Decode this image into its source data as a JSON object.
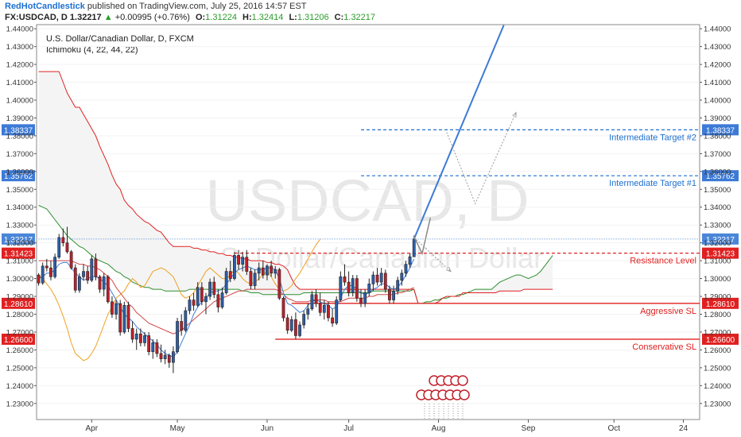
{
  "header": {
    "author": "RedHotCandlestick",
    "published": "published on TradingView.com, July 25, 2016 14:57 EST",
    "symbol": "FX:USDCAD, D",
    "last": "1.32217",
    "change_arrow": "▲",
    "change": "+0.00995 (+0.76%)",
    "o_label": "O:",
    "o": "1.31224",
    "h_label": "H:",
    "h": "1.32414",
    "l_label": "L:",
    "l": "1.31206",
    "c_label": "C:",
    "c": "1.32217"
  },
  "chart_data": {
    "type": "candlestick",
    "title": "U.S. Dollar/Canadian Dollar, D, FXCM",
    "indicator": "Ichimoku (4, 22, 44, 22)",
    "watermark_symbol": "USDCAD, D",
    "watermark_name": "U.S. Dollar/Canadian Dollar",
    "ylim": [
      1.221,
      1.4423
    ],
    "y_ticks": [
      "1.44000",
      "1.43000",
      "1.42000",
      "1.41000",
      "1.40000",
      "1.39000",
      "1.38000",
      "1.37000",
      "1.36000",
      "1.35000",
      "1.34000",
      "1.33000",
      "1.32000",
      "1.31000",
      "1.30000",
      "1.29000",
      "1.28000",
      "1.27000",
      "1.26000",
      "1.25000",
      "1.24000",
      "1.23000"
    ],
    "x_ticks": [
      {
        "label": "Apr",
        "i": 13
      },
      {
        "label": "May",
        "i": 34
      },
      {
        "label": "Jun",
        "i": 56
      },
      {
        "label": "Jul",
        "i": 76
      },
      {
        "label": "Aug",
        "i": 98
      },
      {
        "label": "Sep",
        "i": 120
      },
      {
        "label": "Oct",
        "i": 141
      },
      {
        "label": "24",
        "i": 158
      }
    ],
    "x_range": [
      -0.5,
      162
    ],
    "candles": [
      [
        1.302,
        1.303,
        1.296,
        1.2975
      ],
      [
        1.2975,
        1.309,
        1.2965,
        1.307
      ],
      [
        1.307,
        1.311,
        1.304,
        1.306
      ],
      [
        1.306,
        1.31,
        1.299,
        1.301
      ],
      [
        1.301,
        1.314,
        1.3,
        1.312
      ],
      [
        1.312,
        1.325,
        1.311,
        1.323
      ],
      [
        1.323,
        1.328,
        1.318,
        1.32
      ],
      [
        1.32,
        1.329,
        1.314,
        1.315
      ],
      [
        1.315,
        1.316,
        1.305,
        1.306
      ],
      [
        1.306,
        1.308,
        1.292,
        1.2935
      ],
      [
        1.2935,
        1.303,
        1.292,
        1.301
      ],
      [
        1.301,
        1.308,
        1.299,
        1.304
      ],
      [
        1.304,
        1.307,
        1.297,
        1.299
      ],
      [
        1.299,
        1.313,
        1.298,
        1.311
      ],
      [
        1.311,
        1.314,
        1.299,
        1.301
      ],
      [
        1.301,
        1.302,
        1.292,
        1.294
      ],
      [
        1.294,
        1.303,
        1.29,
        1.301
      ],
      [
        1.301,
        1.302,
        1.286,
        1.287
      ],
      [
        1.287,
        1.29,
        1.278,
        1.28
      ],
      [
        1.28,
        1.288,
        1.277,
        1.286
      ],
      [
        1.286,
        1.288,
        1.268,
        1.27
      ],
      [
        1.27,
        1.287,
        1.269,
        1.285
      ],
      [
        1.285,
        1.287,
        1.27,
        1.272
      ],
      [
        1.272,
        1.276,
        1.264,
        1.266
      ],
      [
        1.266,
        1.272,
        1.26,
        1.269
      ],
      [
        1.269,
        1.272,
        1.262,
        1.264
      ],
      [
        1.264,
        1.27,
        1.262,
        1.268
      ],
      [
        1.268,
        1.27,
        1.257,
        1.259
      ],
      [
        1.259,
        1.266,
        1.255,
        1.264
      ],
      [
        1.264,
        1.266,
        1.256,
        1.258
      ],
      [
        1.258,
        1.263,
        1.253,
        1.255
      ],
      [
        1.255,
        1.26,
        1.252,
        1.257
      ],
      [
        1.257,
        1.258,
        1.25,
        1.253
      ],
      [
        1.253,
        1.262,
        1.247,
        1.259
      ],
      [
        1.259,
        1.278,
        1.258,
        1.276
      ],
      [
        1.276,
        1.28,
        1.268,
        1.271
      ],
      [
        1.271,
        1.284,
        1.27,
        1.282
      ],
      [
        1.282,
        1.29,
        1.28,
        1.288
      ],
      [
        1.288,
        1.292,
        1.282,
        1.285
      ],
      [
        1.285,
        1.298,
        1.284,
        1.295
      ],
      [
        1.295,
        1.298,
        1.285,
        1.287
      ],
      [
        1.287,
        1.292,
        1.28,
        1.29
      ],
      [
        1.29,
        1.3,
        1.288,
        1.298
      ],
      [
        1.298,
        1.301,
        1.289,
        1.291
      ],
      [
        1.291,
        1.294,
        1.281,
        1.284
      ],
      [
        1.284,
        1.295,
        1.283,
        1.292
      ],
      [
        1.292,
        1.306,
        1.291,
        1.304
      ],
      [
        1.304,
        1.31,
        1.298,
        1.3
      ],
      [
        1.3,
        1.315,
        1.299,
        1.313
      ],
      [
        1.313,
        1.316,
        1.305,
        1.308
      ],
      [
        1.308,
        1.315,
        1.304,
        1.312
      ],
      [
        1.312,
        1.316,
        1.302,
        1.304
      ],
      [
        1.304,
        1.306,
        1.294,
        1.296
      ],
      [
        1.296,
        1.305,
        1.294,
        1.303
      ],
      [
        1.303,
        1.309,
        1.299,
        1.306
      ],
      [
        1.306,
        1.31,
        1.3,
        1.302
      ],
      [
        1.302,
        1.308,
        1.299,
        1.307
      ],
      [
        1.307,
        1.31,
        1.301,
        1.303
      ],
      [
        1.303,
        1.307,
        1.3,
        1.305
      ],
      [
        1.305,
        1.306,
        1.288,
        1.289
      ],
      [
        1.289,
        1.29,
        1.276,
        1.278
      ],
      [
        1.278,
        1.28,
        1.269,
        1.271
      ],
      [
        1.271,
        1.279,
        1.27,
        1.277
      ],
      [
        1.277,
        1.281,
        1.266,
        1.268
      ],
      [
        1.268,
        1.276,
        1.267,
        1.274
      ],
      [
        1.274,
        1.282,
        1.272,
        1.28
      ],
      [
        1.28,
        1.286,
        1.277,
        1.283
      ],
      [
        1.283,
        1.293,
        1.282,
        1.291
      ],
      [
        1.291,
        1.294,
        1.284,
        1.286
      ],
      [
        1.286,
        1.292,
        1.279,
        1.281
      ],
      [
        1.281,
        1.288,
        1.277,
        1.285
      ],
      [
        1.285,
        1.287,
        1.276,
        1.278
      ],
      [
        1.278,
        1.283,
        1.273,
        1.275
      ],
      [
        1.275,
        1.29,
        1.274,
        1.288
      ],
      [
        1.288,
        1.304,
        1.287,
        1.301
      ],
      [
        1.301,
        1.308,
        1.296,
        1.298
      ],
      [
        1.298,
        1.304,
        1.29,
        1.292
      ],
      [
        1.292,
        1.302,
        1.29,
        1.3
      ],
      [
        1.3,
        1.302,
        1.287,
        1.289
      ],
      [
        1.289,
        1.294,
        1.284,
        1.286
      ],
      [
        1.286,
        1.294,
        1.284,
        1.292
      ],
      [
        1.292,
        1.3,
        1.29,
        1.297
      ],
      [
        1.297,
        1.304,
        1.293,
        1.302
      ],
      [
        1.302,
        1.306,
        1.296,
        1.298
      ],
      [
        1.298,
        1.306,
        1.296,
        1.303
      ],
      [
        1.303,
        1.305,
        1.292,
        1.294
      ],
      [
        1.294,
        1.296,
        1.286,
        1.288
      ],
      [
        1.288,
        1.296,
        1.286,
        1.293
      ],
      [
        1.293,
        1.301,
        1.291,
        1.299
      ],
      [
        1.299,
        1.305,
        1.296,
        1.303
      ],
      [
        1.303,
        1.31,
        1.301,
        1.308
      ],
      [
        1.308,
        1.314,
        1.306,
        1.3122
      ],
      [
        1.3122,
        1.3241,
        1.3121,
        1.3222
      ]
    ],
    "tenkan": [
      1.3,
      1.301,
      1.303,
      1.303,
      1.305,
      1.308,
      1.309,
      1.309,
      1.306,
      1.303,
      1.301,
      1.299,
      1.3,
      1.301,
      1.301,
      1.3,
      1.298,
      1.296,
      1.292,
      1.288,
      1.284,
      1.28,
      1.278,
      1.276,
      1.273,
      1.271,
      1.269,
      1.267,
      1.265,
      1.263,
      1.26,
      1.258,
      1.257,
      1.256,
      1.259,
      1.264,
      1.269,
      1.274,
      1.28,
      1.284,
      1.287,
      1.289,
      1.292,
      1.293,
      1.293,
      1.294,
      1.297,
      1.3,
      1.303,
      1.305,
      1.306,
      1.307,
      1.306,
      1.305,
      1.305,
      1.305,
      1.306,
      1.306,
      1.305,
      1.3,
      1.292,
      1.286,
      1.285,
      1.283,
      1.281,
      1.282,
      1.285,
      1.287,
      1.288,
      1.287,
      1.286,
      1.285,
      1.283,
      1.284,
      1.289,
      1.294,
      1.296,
      1.296,
      1.294,
      1.292,
      1.291,
      1.292,
      1.294,
      1.295,
      1.297,
      1.297,
      1.295,
      1.294,
      1.295,
      1.298,
      1.302,
      1.306,
      1.311
    ],
    "kijun": [
      1.31,
      1.31,
      1.31,
      1.31,
      1.31,
      1.31,
      1.31,
      1.31,
      1.31,
      1.309,
      1.308,
      1.308,
      1.307,
      1.307,
      1.306,
      1.305,
      1.303,
      1.301,
      1.299,
      1.295,
      1.292,
      1.289,
      1.286,
      1.284,
      1.281,
      1.279,
      1.277,
      1.275,
      1.274,
      1.273,
      1.272,
      1.271,
      1.27,
      1.269,
      1.27,
      1.271,
      1.273,
      1.275,
      1.277,
      1.279,
      1.281,
      1.283,
      1.285,
      1.287,
      1.288,
      1.289,
      1.29,
      1.291,
      1.292,
      1.293,
      1.293,
      1.294,
      1.294,
      1.294,
      1.294,
      1.294,
      1.294,
      1.294,
      1.294,
      1.293,
      1.291,
      1.289,
      1.288,
      1.287,
      1.287,
      1.287,
      1.287,
      1.288,
      1.288,
      1.288,
      1.288,
      1.287,
      1.287,
      1.287,
      1.287,
      1.288,
      1.289,
      1.289,
      1.289,
      1.289,
      1.289,
      1.29,
      1.29,
      1.291,
      1.291,
      1.291,
      1.291,
      1.291,
      1.292,
      1.292,
      1.293,
      1.294,
      1.295
    ],
    "chikou": [
      1.302,
      1.3,
      1.297,
      1.294,
      1.29,
      1.285,
      1.279,
      1.272,
      1.264,
      1.258,
      1.256,
      1.254,
      1.255,
      1.258,
      1.262,
      1.268,
      1.274,
      1.28,
      1.284,
      1.289,
      1.291,
      1.293,
      1.297,
      1.3,
      1.298,
      1.295,
      1.296,
      1.3,
      1.304,
      1.305,
      1.306,
      1.305,
      1.303,
      1.301,
      1.296,
      1.291,
      1.289,
      1.29,
      1.292,
      1.296,
      1.3,
      1.304,
      1.306,
      1.304,
      1.302,
      1.3,
      1.3,
      1.302,
      1.305,
      1.303,
      1.3,
      1.298,
      1.297,
      1.298,
      1.3,
      1.302,
      1.304,
      1.301,
      1.297,
      1.294,
      1.293,
      1.294,
      1.296,
      1.3,
      1.303,
      1.307,
      1.311,
      1.315,
      1.319,
      1.322
    ],
    "senkou_a": [
      1.341,
      1.34,
      1.339,
      1.336,
      1.333,
      1.33,
      1.327,
      1.324,
      1.322,
      1.32,
      1.318,
      1.317,
      1.315,
      1.313,
      1.311,
      1.31,
      1.309,
      1.308,
      1.306,
      1.304,
      1.303,
      1.301,
      1.3,
      1.298,
      1.297,
      1.296,
      1.295,
      1.295,
      1.294,
      1.294,
      1.294,
      1.293,
      1.293,
      1.293,
      1.293,
      1.293,
      1.293,
      1.294,
      1.294,
      1.294,
      1.294,
      1.294,
      1.294,
      1.294,
      1.294,
      1.294,
      1.294,
      1.294,
      1.294,
      1.294,
      1.293,
      1.293,
      1.292,
      1.292,
      1.292,
      1.291,
      1.291,
      1.291,
      1.291,
      1.291,
      1.291,
      1.291,
      1.291,
      1.291,
      1.291,
      1.292,
      1.292,
      1.292,
      1.292,
      1.292,
      1.292,
      1.292,
      1.292,
      1.292,
      1.292,
      1.292,
      1.292,
      1.292,
      1.292,
      1.292,
      1.292,
      1.292,
      1.293,
      1.293,
      1.293,
      1.293,
      1.293,
      1.293,
      1.293,
      1.293,
      1.293,
      1.293,
      1.294
    ],
    "senkou_b": [
      1.416,
      1.416,
      1.416,
      1.416,
      1.416,
      1.416,
      1.41,
      1.404,
      1.4,
      1.396,
      1.396,
      1.392,
      1.388,
      1.384,
      1.38,
      1.374,
      1.369,
      1.364,
      1.358,
      1.353,
      1.35,
      1.344,
      1.341,
      1.339,
      1.336,
      1.334,
      1.332,
      1.331,
      1.329,
      1.327,
      1.326,
      1.323,
      1.32,
      1.318,
      1.318,
      1.318,
      1.318,
      1.318,
      1.317,
      1.317,
      1.316,
      1.316,
      1.315,
      1.315,
      1.314,
      1.314,
      1.313,
      1.313,
      1.312,
      1.312,
      1.311,
      1.311,
      1.31,
      1.31,
      1.31,
      1.31,
      1.309,
      1.309,
      1.308,
      1.308,
      1.307,
      1.305,
      1.3,
      1.296,
      1.294,
      1.294,
      1.294,
      1.294,
      1.294,
      1.294,
      1.294,
      1.294,
      1.294,
      1.294,
      1.294,
      1.294,
      1.294,
      1.294,
      1.294,
      1.294,
      1.294,
      1.294,
      1.294,
      1.294,
      1.294,
      1.294,
      1.294,
      1.294,
      1.294,
      1.294,
      1.294,
      1.294,
      1.294
    ],
    "cloud_ext_a": [
      1.286,
      1.286,
      1.287,
      1.287,
      1.288,
      1.288,
      1.289,
      1.289,
      1.29,
      1.29,
      1.291,
      1.291,
      1.292,
      1.293,
      1.294,
      1.294,
      1.294,
      1.294,
      1.294,
      1.296,
      1.298,
      1.299,
      1.3,
      1.301,
      1.302,
      1.302,
      1.301,
      1.3,
      1.301,
      1.302,
      1.304,
      1.307,
      1.31,
      1.313
    ],
    "cloud_ext_b": [
      1.286,
      1.286,
      1.286,
      1.286,
      1.286,
      1.287,
      1.289,
      1.29,
      1.29,
      1.29,
      1.29,
      1.292,
      1.292,
      1.292,
      1.292,
      1.292,
      1.292,
      1.292,
      1.292,
      1.292,
      1.293,
      1.293,
      1.293,
      1.293,
      1.293,
      1.293,
      1.294,
      1.294,
      1.294,
      1.294,
      1.294,
      1.294,
      1.294,
      1.294
    ],
    "levels": [
      {
        "name": "Intermediate Target #2",
        "value": 1.38337,
        "label": "1.38337",
        "style": "dash",
        "color": "#1e6fd0",
        "from_i": 79
      },
      {
        "name": "Intermediate Target #1",
        "value": 1.35762,
        "label": "1.35762",
        "style": "dash",
        "color": "#1e6fd0",
        "from_i": 79
      },
      {
        "name": "",
        "value": 1.32217,
        "label": "1.32217",
        "style": "dot",
        "color": "#5b8fd6",
        "from_i": 0
      },
      {
        "name": "Resistance Level",
        "value": 1.31423,
        "label": "1.31423",
        "style": "dash",
        "color": "#e02020",
        "from_i": 48
      },
      {
        "name": "Aggressive SL",
        "value": 1.2861,
        "label": "1.28610",
        "style": "solid",
        "color": "#e02020",
        "from_i": 62
      },
      {
        "name": "Conservative SL",
        "value": 1.266,
        "label": "1.26600",
        "style": "solid",
        "color": "#e02020",
        "from_i": 58
      }
    ],
    "projection": {
      "from": [
        92,
        1.3222
      ],
      "to": [
        114,
        1.442
      ],
      "color": "#3d7ad6"
    },
    "gray_zigzag": [
      [
        92,
        1.3235
      ],
      [
        94,
        1.314
      ],
      [
        96,
        1.334
      ]
    ],
    "dotted_paths": [
      [
        [
          92,
          1.323
        ],
        [
          101,
          1.304
        ]
      ],
      [
        [
          100,
          1.382
        ],
        [
          107,
          1.342
        ],
        [
          117,
          1.393
        ]
      ]
    ],
    "colors": {
      "up_candle": "#2e5ea8",
      "down_candle": "#c0202a",
      "tenkan": "#e02020",
      "kijun": "#d04848",
      "chikou": "#f0a020",
      "senkou_a": "#2f8f2f",
      "senkou_b": "#e02020",
      "cloud": "#f4f4f4",
      "axis": "#555555"
    }
  }
}
